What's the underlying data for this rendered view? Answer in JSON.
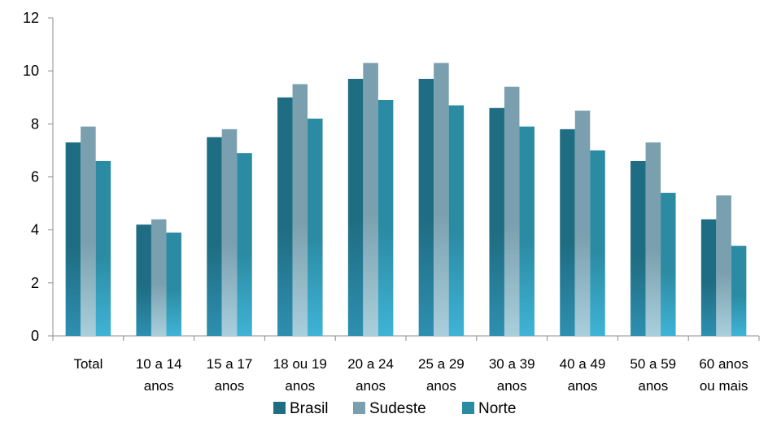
{
  "chart_data": {
    "type": "bar",
    "categories": [
      [
        "Total"
      ],
      [
        "10 a 14",
        "anos"
      ],
      [
        "15 a 17",
        "anos"
      ],
      [
        "18 ou 19",
        "anos"
      ],
      [
        "20 a 24",
        "anos"
      ],
      [
        "25 a 29",
        "anos"
      ],
      [
        "30 a 39",
        "anos"
      ],
      [
        "40 a 49",
        "anos"
      ],
      [
        "50 a 59",
        "anos"
      ],
      [
        "60 anos",
        "ou mais"
      ]
    ],
    "series": [
      {
        "name": "Brasil",
        "color": "#1f6d82",
        "values": [
          7.3,
          4.2,
          7.5,
          9.0,
          9.7,
          9.7,
          8.6,
          7.8,
          6.6,
          4.4
        ]
      },
      {
        "name": "Sudeste",
        "color": "#7a9fae",
        "values": [
          7.9,
          4.4,
          7.8,
          9.5,
          10.3,
          10.3,
          9.4,
          8.5,
          7.3,
          5.3
        ]
      },
      {
        "name": "Norte",
        "color": "#2b8ba3",
        "values": [
          6.6,
          3.9,
          6.9,
          8.2,
          8.9,
          8.7,
          7.9,
          7.0,
          5.4,
          3.4
        ]
      }
    ],
    "y_ticks": [
      "0",
      "2",
      "4",
      "6",
      "8",
      "10",
      "12"
    ],
    "ylim": [
      0,
      12
    ],
    "grid": false,
    "legend_position": "bottom"
  }
}
